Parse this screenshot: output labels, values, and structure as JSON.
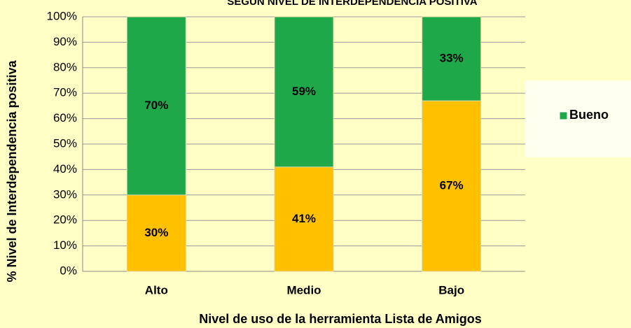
{
  "chart_data": {
    "type": "stacked_bar",
    "title": "SEGÚN NIVEL DE INTERDEPENDENCIA POSITIVA",
    "x_label": "Nivel de uso de la herramienta Lista de Amigos",
    "y_label": "% Nivel de Interdependencia positiva",
    "categories": [
      "Alto",
      "Medio",
      "Bajo"
    ],
    "series": [
      {
        "color": "#ffc000",
        "values": [
          30,
          41,
          67
        ],
        "value_labels": [
          "30%",
          "41%",
          "67%"
        ]
      },
      {
        "name": "Bueno",
        "color": "#1fa84a",
        "values": [
          70,
          59,
          33
        ],
        "value_labels": [
          "70%",
          "59%",
          "33%"
        ]
      }
    ],
    "ylim": [
      0,
      100
    ],
    "yticks": [
      {
        "value": 0,
        "label": "0%"
      },
      {
        "value": 10,
        "label": "10%"
      },
      {
        "value": 20,
        "label": "20%"
      },
      {
        "value": 30,
        "label": "30%"
      },
      {
        "value": 40,
        "label": "40%"
      },
      {
        "value": 50,
        "label": "50%"
      },
      {
        "value": 60,
        "label": "60%"
      },
      {
        "value": 70,
        "label": "70%"
      },
      {
        "value": 80,
        "label": "80%"
      },
      {
        "value": 90,
        "label": "90%"
      },
      {
        "value": 100,
        "label": "100%"
      }
    ],
    "grid": true,
    "legend": "right"
  }
}
